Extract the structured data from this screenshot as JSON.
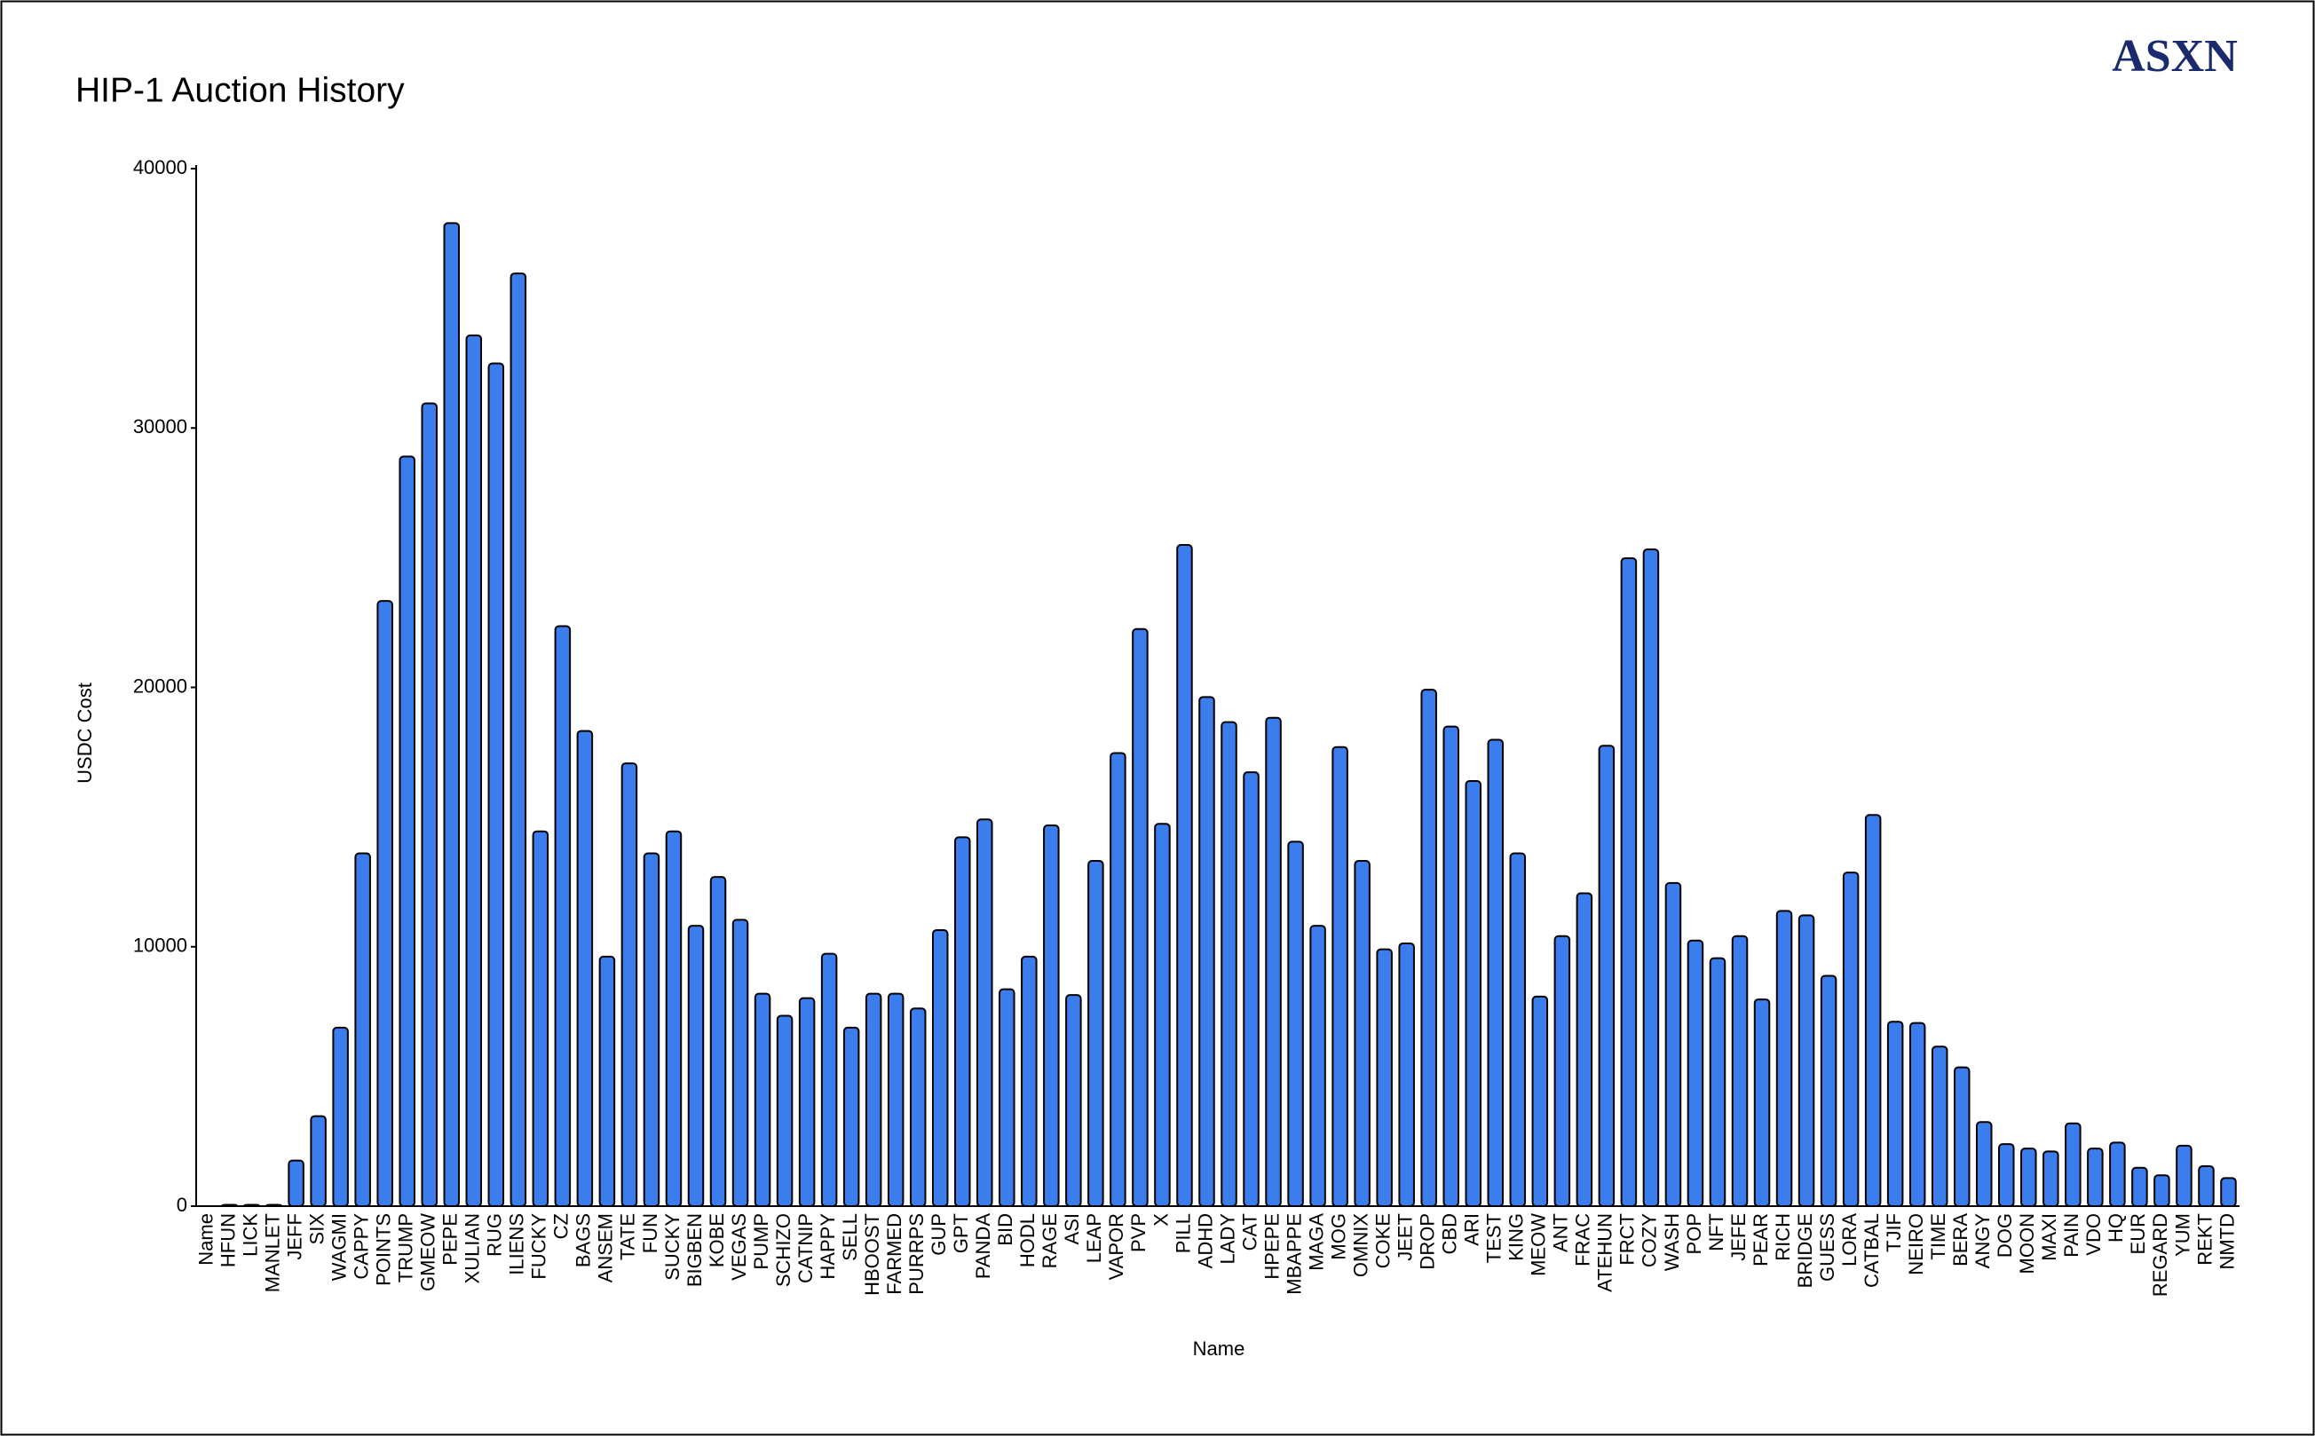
{
  "chart_data": {
    "type": "bar",
    "title": "HIP-1 Auction History",
    "logo": "ASXN",
    "x_label": "Name",
    "y_label": "USDC Cost",
    "color": "#3b7ded",
    "grid": false,
    "ylim": [
      0,
      40000
    ],
    "yticks": [
      0,
      10000,
      20000,
      30000,
      40000
    ],
    "categories": [
      "Name",
      "HFUN",
      "LICK",
      "MANLET",
      "JEFF",
      "SIX",
      "WAGMI",
      "CAPPY",
      "POINTS",
      "TRUMP",
      "GMEOW",
      "PEPE",
      "XULIAN",
      "RUG",
      "ILIENS",
      "FUCKY",
      "CZ",
      "BAGS",
      "ANSEM",
      "TATE",
      "FUN",
      "SUCKY",
      "BIGBEN",
      "KOBE",
      "VEGAS",
      "PUMP",
      "SCHIZO",
      "CATNIP",
      "HAPPY",
      "SELL",
      "HBOOST",
      "FARMED",
      "PURRPS",
      "GUP",
      "GPT",
      "PANDA",
      "BID",
      "HODL",
      "RAGE",
      "ASI",
      "LEAP",
      "VAPOR",
      "PVP",
      "X",
      "PILL",
      "ADHD",
      "LADY",
      "CAT",
      "HPEPE",
      "MBAPPE",
      "MAGA",
      "MOG",
      "OMNIX",
      "COKE",
      "JEET",
      "DROP",
      "CBD",
      "ARI",
      "TEST",
      "KING",
      "MEOW",
      "ANT",
      "FRAC",
      "ATEHUN",
      "FRCT",
      "COZY",
      "WASH",
      "POP",
      "NFT",
      "JEFE",
      "PEAR",
      "RICH",
      "BRIDGE",
      "GUESS",
      "LORA",
      "CATBAL",
      "TJIF",
      "NEIRO",
      "TIME",
      "BERA",
      "ANGY",
      "DOG",
      "MOON",
      "MAXI",
      "PAIN",
      "VDO",
      "HQ",
      "EUR",
      "REGARD",
      "YUM",
      "REKT",
      "NMTD"
    ],
    "values": [
      0,
      50,
      50,
      50,
      1760,
      3470,
      6880,
      13600,
      23330,
      28900,
      30950,
      37900,
      33570,
      32490,
      35960,
      14450,
      22360,
      18320,
      9620,
      17070,
      13600,
      14450,
      10810,
      12690,
      11040,
      8190,
      7340,
      8020,
      9730,
      6880,
      8190,
      8190,
      7620,
      10640,
      14220,
      14910,
      8360,
      9620,
      14680,
      8140,
      13310,
      17470,
      22250,
      14740,
      25490,
      19630,
      18660,
      16730,
      18830,
      14050,
      10810,
      17700,
      13310,
      9900,
      10130,
      19910,
      18490,
      16390,
      17980,
      13600,
      8080,
      10410,
      12060,
      17750,
      24980,
      25320,
      12460,
      10240,
      9560,
      10410,
      7970,
      11380,
      11210,
      8880,
      12860,
      15080,
      7110,
      7060,
      6150,
      5350,
      3240,
      2390,
      2220,
      2110,
      3190,
      2220,
      2450,
      1480,
      1190,
      2330,
      1540,
      1080
    ]
  }
}
